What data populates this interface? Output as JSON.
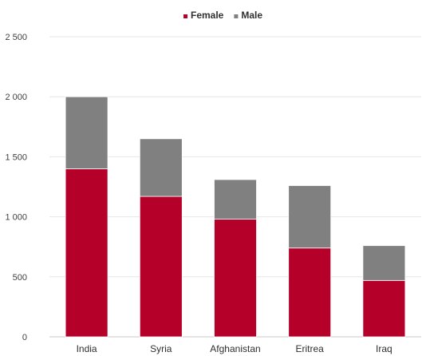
{
  "chart_data": {
    "type": "bar",
    "stacked": true,
    "categories": [
      "India",
      "Syria",
      "Afghanistan",
      "Eritrea",
      "Iraq"
    ],
    "series": [
      {
        "name": "Female",
        "color": "#b5002a",
        "values": [
          1400,
          1170,
          980,
          740,
          470
        ]
      },
      {
        "name": "Male",
        "color": "#808080",
        "values": [
          600,
          480,
          330,
          520,
          290
        ]
      }
    ],
    "y_ticks": [
      "0",
      "500",
      "1 000",
      "1 500",
      "2 000",
      "2 500"
    ],
    "y_tick_values": [
      0,
      500,
      1000,
      1500,
      2000,
      2500
    ],
    "ylim": [
      0,
      2500
    ],
    "grid": true,
    "legend_position": "top-center",
    "title": "",
    "xlabel": "",
    "ylabel": ""
  }
}
